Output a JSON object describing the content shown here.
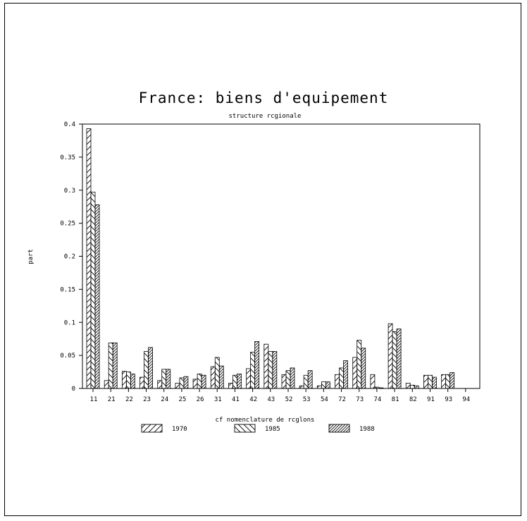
{
  "chart_data": {
    "type": "bar",
    "title": "France: biens d'equipement",
    "subtitle": "structure rcgionale",
    "xlabel": "cf nomenclature de rcglons",
    "ylabel": "part",
    "ylim": [
      0,
      0.4
    ],
    "yticks": [
      "0",
      "0.05",
      "0.1",
      "0.15",
      "0.2",
      "0.25",
      "0.3",
      "0.35",
      "0.4"
    ],
    "categories": [
      "11",
      "21",
      "22",
      "23",
      "24",
      "25",
      "26",
      "31",
      "41",
      "42",
      "43",
      "52",
      "53",
      "54",
      "72",
      "73",
      "74",
      "81",
      "82",
      "91",
      "93",
      "94"
    ],
    "series": [
      {
        "name": "1970",
        "values": [
          0.393,
          0.012,
          0.026,
          0.017,
          0.012,
          0.008,
          0.014,
          0.033,
          0.008,
          0.03,
          0.067,
          0.021,
          0.004,
          0.004,
          0.021,
          0.047,
          0.021,
          0.098,
          0.008,
          0.02,
          0.021,
          0.0
        ]
      },
      {
        "name": "1985",
        "values": [
          0.297,
          0.069,
          0.025,
          0.056,
          0.029,
          0.016,
          0.022,
          0.047,
          0.02,
          0.055,
          0.056,
          0.027,
          0.02,
          0.01,
          0.031,
          0.073,
          0.002,
          0.086,
          0.005,
          0.02,
          0.021,
          0.0
        ]
      },
      {
        "name": "1988",
        "values": [
          0.278,
          0.069,
          0.022,
          0.062,
          0.029,
          0.018,
          0.02,
          0.034,
          0.022,
          0.071,
          0.056,
          0.031,
          0.027,
          0.01,
          0.042,
          0.061,
          0.001,
          0.09,
          0.004,
          0.017,
          0.024,
          0.0
        ]
      }
    ],
    "legend_position": "bottom",
    "grid": false
  }
}
